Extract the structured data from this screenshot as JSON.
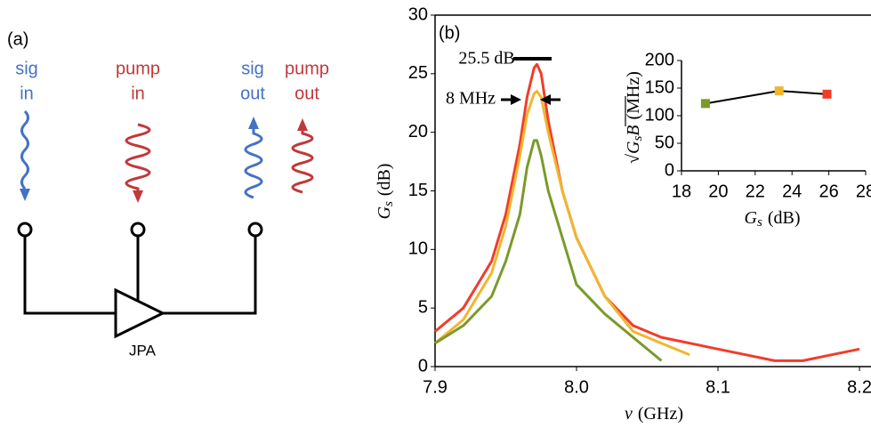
{
  "diagram": {
    "panel": "(a)",
    "signal_in": [
      "sig",
      "in"
    ],
    "pump_in": [
      "pump",
      "in"
    ],
    "signal_out": [
      "sig",
      "out"
    ],
    "pump_out": [
      "pump",
      "out"
    ],
    "amplifier": "JPA"
  },
  "chart_data": [
    {
      "type": "line",
      "panel": "(b)",
      "x": [
        7.9,
        7.92,
        7.94,
        7.95,
        7.96,
        7.965,
        7.97,
        7.972,
        7.975,
        7.98,
        7.99,
        8.0,
        8.02,
        8.04,
        8.06,
        8.08,
        8.1,
        8.12,
        8.14,
        8.16,
        8.18,
        8.2
      ],
      "series": [
        {
          "color": "#f23c2a",
          "values": [
            3,
            5,
            9,
            13,
            19,
            23,
            25.5,
            25.8,
            25,
            21,
            15,
            11,
            6,
            3.5,
            2.5,
            2,
            1.5,
            1,
            0.5,
            0.5,
            1,
            1.5
          ]
        },
        {
          "color": "#f0b630",
          "values": [
            2,
            4,
            8,
            12,
            18,
            21.5,
            23.3,
            23.5,
            23,
            20,
            15,
            11,
            6,
            3,
            2,
            1,
            null,
            null,
            null,
            null,
            null,
            null
          ]
        },
        {
          "color": "#7a9a2a",
          "values": [
            2,
            3.5,
            6,
            9,
            13,
            17,
            19.3,
            19.3,
            18,
            15,
            11,
            7,
            4.5,
            2.5,
            0.5,
            null,
            null,
            null,
            null,
            null,
            null,
            null
          ]
        }
      ],
      "xlim": [
        7.9,
        8.205
      ],
      "xticks": [
        7.9,
        {
          "value": 8,
          "label": "8.0"
        },
        8.1,
        8.2
      ],
      "ylim": [
        0,
        30
      ],
      "yticks": [
        0,
        5,
        10,
        15,
        20,
        25,
        30
      ],
      "xlabel": {
        "symbol": "ν",
        "unit": "(GHz)"
      },
      "ylabel": {
        "symbol": "G",
        "subscript": "s",
        "unit": "(dB)"
      },
      "annotations": [
        "25.5 dB",
        "8 MHz"
      ]
    },
    {
      "type": "scatter",
      "x": [
        19.3,
        23.3,
        25.9
      ],
      "values": [
        122,
        145,
        139
      ],
      "colors": [
        "#7a9a2a",
        "#f0b630",
        "#f23c2a"
      ],
      "line_color": "#000000",
      "xlim": [
        18,
        28
      ],
      "xticks": [
        18,
        20,
        22,
        24,
        26,
        28
      ],
      "ylim": [
        0,
        200
      ],
      "yticks": [
        0,
        50,
        100,
        150,
        200
      ],
      "xlabel": {
        "symbol": "G",
        "subscript": "s",
        "unit": "(dB)"
      },
      "ylabel": {
        "radical": "√",
        "symbol": "G",
        "subscript": "s",
        "factor": "B",
        "unit": "(MHz)"
      }
    }
  ]
}
